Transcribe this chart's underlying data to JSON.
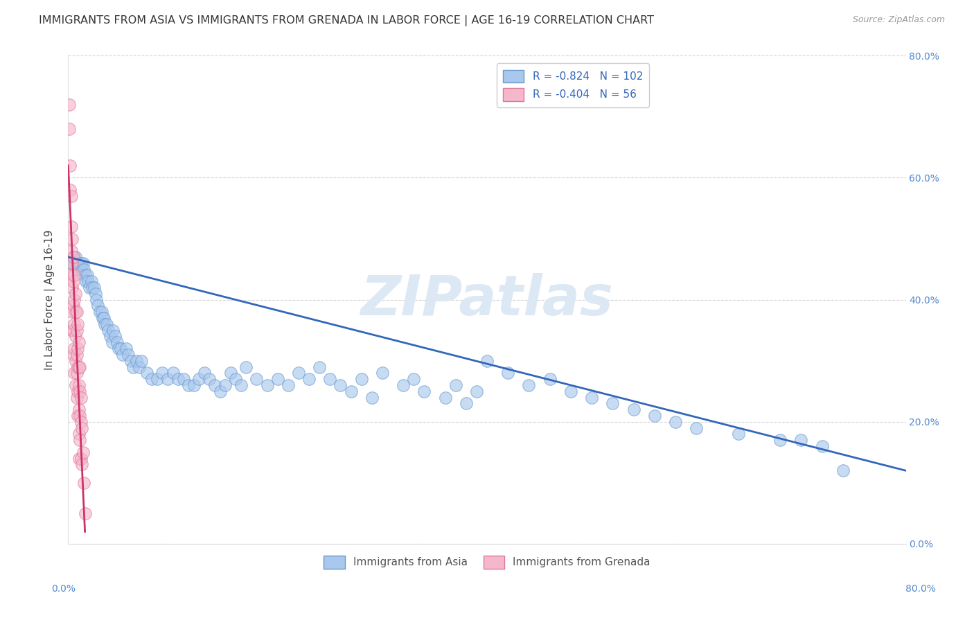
{
  "title": "IMMIGRANTS FROM ASIA VS IMMIGRANTS FROM GRENADA IN LABOR FORCE | AGE 16-19 CORRELATION CHART",
  "source": "Source: ZipAtlas.com",
  "ylabel": "In Labor Force | Age 16-19",
  "xlim": [
    0.0,
    0.8
  ],
  "ylim": [
    0.0,
    0.8
  ],
  "x_ticks": [
    0.0,
    0.1,
    0.2,
    0.3,
    0.4,
    0.5,
    0.6,
    0.7,
    0.8
  ],
  "y_ticks": [
    0.0,
    0.2,
    0.4,
    0.6,
    0.8
  ],
  "legend_r_blue": "-0.824",
  "legend_n_blue": "102",
  "legend_r_pink": "-0.404",
  "legend_n_pink": "56",
  "blue_scatter_color": "#aac8ee",
  "blue_edge_color": "#6699cc",
  "pink_scatter_color": "#f5b8cb",
  "pink_edge_color": "#dd7799",
  "line_blue_color": "#3366bb",
  "line_pink_color": "#cc3366",
  "grid_color": "#cccccc",
  "axis_tick_color": "#5588cc",
  "title_color": "#333333",
  "source_color": "#999999",
  "watermark_color": "#dde8f5",
  "watermark_text": "ZIPatlas",
  "legend_bottom_blue": "Immigrants from Asia",
  "legend_bottom_pink": "Immigrants from Grenada",
  "asia_x": [
    0.003,
    0.004,
    0.005,
    0.006,
    0.007,
    0.008,
    0.009,
    0.01,
    0.011,
    0.012,
    0.013,
    0.014,
    0.015,
    0.016,
    0.017,
    0.018,
    0.019,
    0.02,
    0.022,
    0.023,
    0.025,
    0.026,
    0.027,
    0.028,
    0.03,
    0.032,
    0.033,
    0.034,
    0.035,
    0.037,
    0.038,
    0.04,
    0.042,
    0.043,
    0.045,
    0.047,
    0.048,
    0.05,
    0.052,
    0.055,
    0.057,
    0.06,
    0.062,
    0.065,
    0.068,
    0.07,
    0.075,
    0.08,
    0.085,
    0.09,
    0.095,
    0.1,
    0.105,
    0.11,
    0.115,
    0.12,
    0.125,
    0.13,
    0.135,
    0.14,
    0.145,
    0.15,
    0.155,
    0.16,
    0.165,
    0.17,
    0.18,
    0.19,
    0.2,
    0.21,
    0.22,
    0.23,
    0.24,
    0.25,
    0.26,
    0.27,
    0.28,
    0.29,
    0.3,
    0.32,
    0.33,
    0.34,
    0.36,
    0.37,
    0.38,
    0.39,
    0.4,
    0.42,
    0.44,
    0.46,
    0.48,
    0.5,
    0.52,
    0.54,
    0.56,
    0.58,
    0.6,
    0.64,
    0.68,
    0.7,
    0.72,
    0.74
  ],
  "asia_y": [
    0.46,
    0.46,
    0.47,
    0.46,
    0.47,
    0.45,
    0.46,
    0.46,
    0.45,
    0.46,
    0.45,
    0.46,
    0.45,
    0.44,
    0.43,
    0.44,
    0.43,
    0.42,
    0.43,
    0.42,
    0.42,
    0.41,
    0.4,
    0.39,
    0.38,
    0.38,
    0.37,
    0.37,
    0.36,
    0.36,
    0.35,
    0.34,
    0.33,
    0.35,
    0.34,
    0.33,
    0.32,
    0.32,
    0.31,
    0.32,
    0.31,
    0.3,
    0.29,
    0.3,
    0.29,
    0.3,
    0.28,
    0.27,
    0.27,
    0.28,
    0.27,
    0.28,
    0.27,
    0.27,
    0.26,
    0.26,
    0.27,
    0.28,
    0.27,
    0.26,
    0.25,
    0.26,
    0.28,
    0.27,
    0.26,
    0.29,
    0.27,
    0.26,
    0.27,
    0.26,
    0.28,
    0.27,
    0.29,
    0.27,
    0.26,
    0.25,
    0.27,
    0.24,
    0.28,
    0.26,
    0.27,
    0.25,
    0.24,
    0.26,
    0.23,
    0.25,
    0.3,
    0.28,
    0.26,
    0.27,
    0.25,
    0.24,
    0.23,
    0.22,
    0.21,
    0.2,
    0.19,
    0.18,
    0.17,
    0.17,
    0.16,
    0.12
  ],
  "grenada_x": [
    0.001,
    0.001,
    0.002,
    0.002,
    0.003,
    0.003,
    0.003,
    0.003,
    0.004,
    0.004,
    0.004,
    0.004,
    0.004,
    0.005,
    0.005,
    0.005,
    0.005,
    0.005,
    0.006,
    0.006,
    0.006,
    0.006,
    0.006,
    0.007,
    0.007,
    0.007,
    0.007,
    0.007,
    0.008,
    0.008,
    0.008,
    0.008,
    0.008,
    0.009,
    0.009,
    0.009,
    0.009,
    0.009,
    0.01,
    0.01,
    0.01,
    0.01,
    0.01,
    0.01,
    0.011,
    0.011,
    0.011,
    0.011,
    0.012,
    0.012,
    0.012,
    0.013,
    0.013,
    0.014,
    0.015,
    0.016
  ],
  "grenada_y": [
    0.72,
    0.68,
    0.62,
    0.58,
    0.57,
    0.52,
    0.48,
    0.44,
    0.5,
    0.46,
    0.42,
    0.38,
    0.35,
    0.47,
    0.43,
    0.39,
    0.35,
    0.31,
    0.44,
    0.4,
    0.36,
    0.32,
    0.28,
    0.41,
    0.38,
    0.34,
    0.3,
    0.26,
    0.38,
    0.35,
    0.31,
    0.28,
    0.24,
    0.36,
    0.32,
    0.29,
    0.25,
    0.21,
    0.33,
    0.29,
    0.26,
    0.22,
    0.18,
    0.14,
    0.29,
    0.25,
    0.21,
    0.17,
    0.24,
    0.2,
    0.14,
    0.19,
    0.13,
    0.15,
    0.1,
    0.05
  ],
  "blue_line_x_start": 0.0,
  "blue_line_x_end": 0.8,
  "blue_line_y_start": 0.47,
  "blue_line_y_end": 0.12,
  "pink_line_x_start": 0.0,
  "pink_line_x_end": 0.016,
  "pink_line_y_start": 0.62,
  "pink_line_y_end": 0.02
}
